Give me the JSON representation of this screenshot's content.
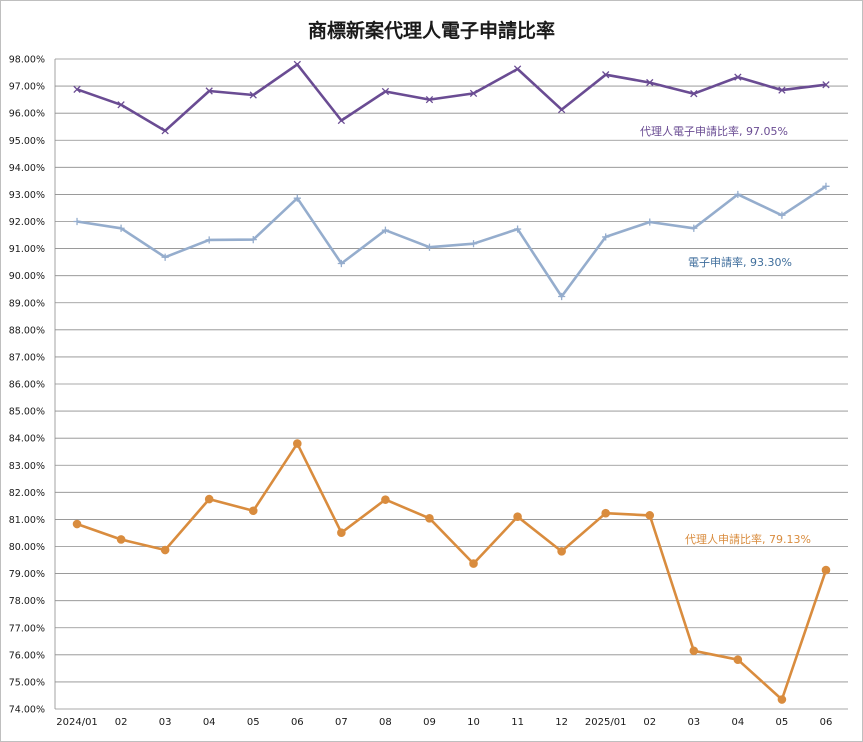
{
  "chart_data": {
    "type": "line",
    "title": "商標新案代理人電子申請比率",
    "categories": [
      "2024/01",
      "02",
      "03",
      "04",
      "05",
      "06",
      "07",
      "08",
      "09",
      "10",
      "11",
      "12",
      "2025/01",
      "02",
      "03",
      "04",
      "05",
      "06"
    ],
    "y_tick_labels": [
      "74.00%",
      "75.00%",
      "76.00%",
      "77.00%",
      "78.00%",
      "79.00%",
      "80.00%",
      "81.00%",
      "82.00%",
      "83.00%",
      "84.00%",
      "85.00%",
      "86.00%",
      "87.00%",
      "88.00%",
      "89.00%",
      "90.00%",
      "91.00%",
      "92.00%",
      "93.00%",
      "94.00%",
      "95.00%",
      "96.00%",
      "97.00%",
      "98.00%"
    ],
    "ylim": [
      74,
      98
    ],
    "grid": true,
    "legend": "none",
    "series": [
      {
        "name": "代理人電子申請比率",
        "label": "代理人電子申請比率, 97.05%",
        "color": "#6a4c93",
        "marker": "x",
        "values": [
          96.88,
          96.31,
          95.35,
          96.82,
          96.67,
          97.8,
          95.73,
          96.8,
          96.5,
          96.73,
          97.63,
          96.13,
          97.42,
          97.13,
          96.72,
          97.33,
          96.85,
          97.05
        ]
      },
      {
        "name": "電子申請率",
        "label": "電子申請率, 93.30%",
        "color": "#95adcd",
        "marker": "plus",
        "values": [
          92.0,
          91.75,
          90.68,
          91.32,
          91.33,
          92.86,
          90.45,
          91.68,
          91.05,
          91.18,
          91.72,
          89.23,
          91.43,
          91.98,
          91.75,
          93.0,
          92.23,
          93.3
        ]
      },
      {
        "name": "代理人申請比率",
        "label": "代理人申請比率, 79.13%",
        "color": "#d98c3e",
        "marker": "circle",
        "values": [
          80.83,
          80.26,
          79.87,
          81.75,
          81.32,
          83.8,
          80.51,
          81.73,
          81.04,
          79.37,
          81.1,
          79.82,
          81.23,
          81.15,
          76.15,
          75.82,
          74.35,
          79.13
        ]
      }
    ]
  }
}
